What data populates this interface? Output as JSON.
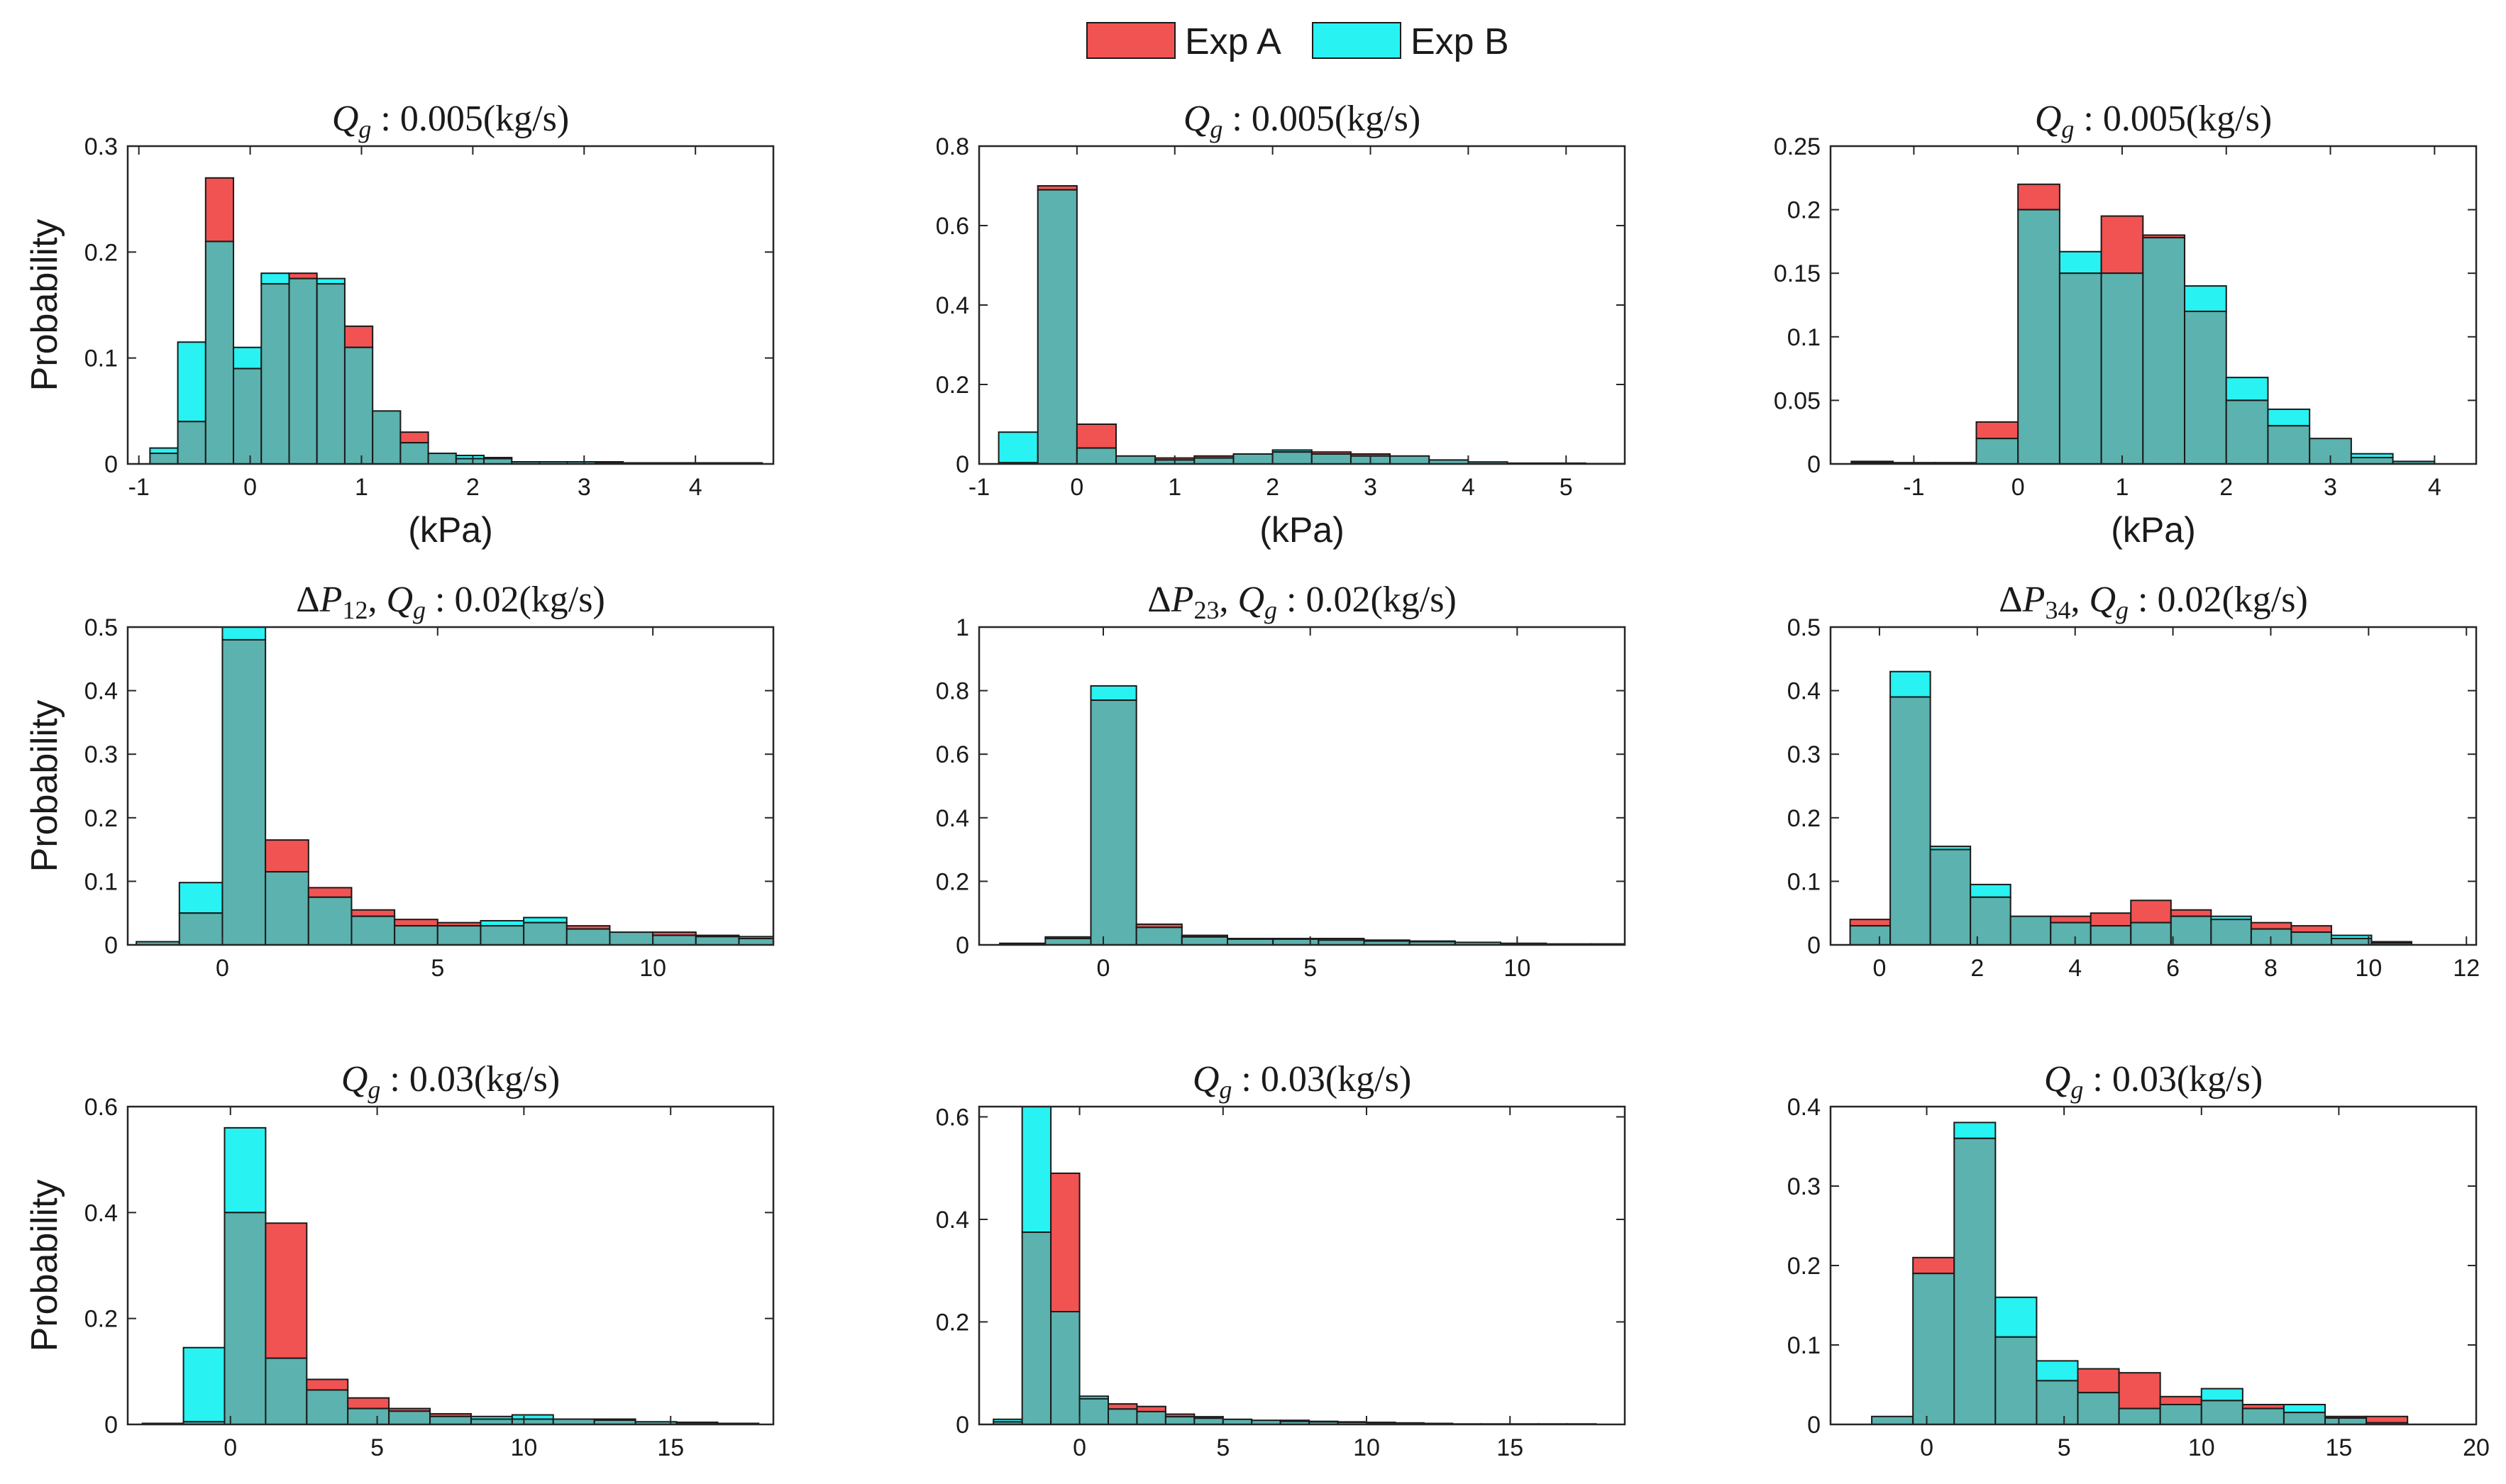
{
  "legend": {
    "entries": [
      {
        "label": "Exp A",
        "color": "#ef4444"
      },
      {
        "label": "Exp B",
        "color": "#22eeee"
      }
    ]
  },
  "colors": {
    "exp_a": "#f15353",
    "exp_b": "#28f2f2",
    "overlap": "#5cb2ae",
    "axis": "#262626"
  },
  "chart_data": [
    {
      "type": "bar",
      "title": "Q_g : 0.005(kg/s)",
      "title_prefix": "",
      "subscript": "g",
      "title_rest": ": 0.005(kg/s)",
      "xlabel": "(kPa)",
      "ylabel": "Probability",
      "xlim": [
        -1.1,
        4.7
      ],
      "ylim": [
        0,
        0.3
      ],
      "xticks": [
        -1,
        0,
        1,
        2,
        3,
        4
      ],
      "yticks": [
        0,
        0.1,
        0.2,
        0.3
      ],
      "ytick_labels": [
        "0",
        "0.1",
        "0.2",
        "0.3"
      ],
      "series": [
        {
          "name": "Exp A",
          "start": -0.9,
          "width": 0.25,
          "values": [
            0.01,
            0.04,
            0.27,
            0.09,
            0.17,
            0.18,
            0.17,
            0.13,
            0.05,
            0.03,
            0.01,
            0.005,
            0.005,
            0.002,
            0.002,
            0.002,
            0.002,
            0.001,
            0.001,
            0.001,
            0.001,
            0.001
          ]
        },
        {
          "name": "Exp B",
          "start": -0.9,
          "width": 0.25,
          "values": [
            0.015,
            0.115,
            0.21,
            0.11,
            0.18,
            0.175,
            0.175,
            0.11,
            0.05,
            0.02,
            0.01,
            0.008,
            0.006,
            0.002,
            0.002,
            0.002,
            0.001,
            0.001,
            0.001,
            0.001,
            0.001,
            0.001
          ]
        }
      ]
    },
    {
      "type": "bar",
      "title": "Q_g : 0.005(kg/s)",
      "title_prefix": "",
      "subscript": "g",
      "title_rest": ": 0.005(kg/s)",
      "xlabel": "(kPa)",
      "ylabel": "",
      "xlim": [
        -1.0,
        5.6
      ],
      "ylim": [
        0,
        0.8
      ],
      "xticks": [
        -1,
        0,
        1,
        2,
        3,
        4,
        5
      ],
      "yticks": [
        0,
        0.2,
        0.4,
        0.6,
        0.8
      ],
      "ytick_labels": [
        "0",
        "0.2",
        "0.4",
        "0.6",
        "0.8"
      ],
      "series": [
        {
          "name": "Exp A",
          "start": -0.8,
          "width": 0.4,
          "values": [
            0.003,
            0.7,
            0.1,
            0.02,
            0.015,
            0.02,
            0.025,
            0.03,
            0.03,
            0.025,
            0.02,
            0.01,
            0.005,
            0.002,
            0.002,
            0.001
          ]
        },
        {
          "name": "Exp B",
          "start": -0.8,
          "width": 0.4,
          "values": [
            0.08,
            0.69,
            0.04,
            0.02,
            0.01,
            0.015,
            0.025,
            0.035,
            0.025,
            0.02,
            0.02,
            0.01,
            0.005,
            0.002,
            0.002,
            0.001
          ]
        }
      ]
    },
    {
      "type": "bar",
      "title": "Q_g : 0.005(kg/s)",
      "title_prefix": "",
      "subscript": "g",
      "title_rest": ": 0.005(kg/s)",
      "xlabel": "(kPa)",
      "ylabel": "",
      "xlim": [
        -1.8,
        4.4
      ],
      "ylim": [
        0,
        0.25
      ],
      "xticks": [
        -1,
        0,
        1,
        2,
        3,
        4
      ],
      "yticks": [
        0,
        0.05,
        0.1,
        0.15,
        0.2,
        0.25
      ],
      "ytick_labels": [
        "0",
        "0.05",
        "0.1",
        "0.15",
        "0.2",
        "0.25"
      ],
      "series": [
        {
          "name": "Exp A",
          "start": -1.6,
          "width": 0.4,
          "values": [
            0.001,
            0.001,
            0.001,
            0.033,
            0.22,
            0.15,
            0.195,
            0.18,
            0.12,
            0.05,
            0.03,
            0.02,
            0.005,
            0.002
          ]
        },
        {
          "name": "Exp B",
          "start": -1.6,
          "width": 0.4,
          "values": [
            0.002,
            0.001,
            0.001,
            0.02,
            0.2,
            0.167,
            0.15,
            0.178,
            0.14,
            0.068,
            0.043,
            0.02,
            0.008,
            0.002
          ]
        }
      ]
    },
    {
      "type": "bar",
      "title": "ΔP12, Q_g : 0.02(kg/s)",
      "title_prefix": "ΔP",
      "title_prefix_sub": "12",
      "subscript": "g",
      "title_rest": ": 0.02(kg/s)",
      "xlabel": "",
      "ylabel": "Probability",
      "xlim": [
        -2.2,
        12.8
      ],
      "ylim": [
        0,
        0.5
      ],
      "xticks": [
        0,
        5,
        10
      ],
      "yticks": [
        0,
        0.1,
        0.2,
        0.3,
        0.4,
        0.5
      ],
      "ytick_labels": [
        "0",
        "0.1",
        "0.2",
        "0.3",
        "0.4",
        "0.5"
      ],
      "series": [
        {
          "name": "Exp A",
          "start": -2.0,
          "width": 1.0,
          "values": [
            0.005,
            0.05,
            0.48,
            0.165,
            0.09,
            0.055,
            0.04,
            0.035,
            0.03,
            0.035,
            0.03,
            0.02,
            0.02,
            0.015,
            0.01,
            0.005,
            0.002
          ]
        },
        {
          "name": "Exp B",
          "start": -2.0,
          "width": 1.0,
          "values": [
            0.005,
            0.098,
            0.5,
            0.115,
            0.075,
            0.045,
            0.03,
            0.03,
            0.038,
            0.043,
            0.025,
            0.02,
            0.015,
            0.013,
            0.013,
            0.005,
            0.002
          ]
        }
      ]
    },
    {
      "type": "bar",
      "title": "ΔP23, Q_g : 0.02(kg/s)",
      "title_prefix": "ΔP",
      "title_prefix_sub": "23",
      "subscript": "g",
      "title_rest": ": 0.02(kg/s)",
      "xlabel": "",
      "ylabel": "",
      "xlim": [
        -3.0,
        12.6
      ],
      "ylim": [
        0,
        1.0
      ],
      "xticks": [
        0,
        5,
        10
      ],
      "yticks": [
        0,
        0.2,
        0.4,
        0.6,
        0.8,
        1
      ],
      "ytick_labels": [
        "0",
        "0.2",
        "0.4",
        "0.6",
        "0.8",
        "1"
      ],
      "series": [
        {
          "name": "Exp A",
          "start": -2.5,
          "width": 1.1,
          "values": [
            0.003,
            0.025,
            0.77,
            0.065,
            0.03,
            0.02,
            0.018,
            0.015,
            0.012,
            0.01,
            0.008,
            0.005,
            0.003,
            0.003
          ]
        },
        {
          "name": "Exp B",
          "start": -2.5,
          "width": 1.1,
          "values": [
            0.005,
            0.02,
            0.815,
            0.055,
            0.025,
            0.018,
            0.02,
            0.02,
            0.015,
            0.012,
            0.008,
            0.005,
            0.003,
            0.003
          ]
        }
      ]
    },
    {
      "type": "bar",
      "title": "ΔP34, Q_g : 0.02(kg/s)",
      "title_prefix": "ΔP",
      "title_prefix_sub": "34",
      "subscript": "g",
      "title_rest": ": 0.02(kg/s)",
      "xlabel": "",
      "ylabel": "",
      "xlim": [
        -1.0,
        12.2
      ],
      "ylim": [
        0,
        0.5
      ],
      "xticks": [
        0,
        2,
        4,
        6,
        8,
        10,
        12
      ],
      "yticks": [
        0,
        0.1,
        0.2,
        0.3,
        0.4,
        0.5
      ],
      "ytick_labels": [
        "0",
        "0.1",
        "0.2",
        "0.3",
        "0.4",
        "0.5"
      ],
      "series": [
        {
          "name": "Exp A",
          "start": -0.6,
          "width": 0.82,
          "values": [
            0.04,
            0.39,
            0.15,
            0.075,
            0.045,
            0.045,
            0.05,
            0.07,
            0.055,
            0.04,
            0.035,
            0.03,
            0.01,
            0.003
          ]
        },
        {
          "name": "Exp B",
          "start": -0.6,
          "width": 0.82,
          "values": [
            0.03,
            0.43,
            0.155,
            0.095,
            0.045,
            0.035,
            0.03,
            0.035,
            0.045,
            0.045,
            0.025,
            0.02,
            0.015,
            0.005
          ]
        }
      ]
    },
    {
      "type": "bar",
      "title": "Q_g : 0.03(kg/s)",
      "title_prefix": "",
      "subscript": "g",
      "title_rest": ": 0.03(kg/s)",
      "xlabel": "",
      "ylabel": "Probability",
      "xlim": [
        -3.5,
        18.5
      ],
      "ylim": [
        0,
        0.6
      ],
      "xticks": [
        0,
        5,
        10,
        15
      ],
      "yticks": [
        0,
        0.2,
        0.4,
        0.6
      ],
      "ytick_labels": [
        "0",
        "0.2",
        "0.4",
        "0.6"
      ],
      "series": [
        {
          "name": "Exp A",
          "start": -3.0,
          "width": 1.4,
          "values": [
            0.002,
            0.005,
            0.4,
            0.38,
            0.085,
            0.05,
            0.03,
            0.02,
            0.01,
            0.01,
            0.01,
            0.01,
            0.005,
            0.004,
            0.002
          ]
        },
        {
          "name": "Exp B",
          "start": -3.0,
          "width": 1.4,
          "values": [
            0.002,
            0.145,
            0.56,
            0.125,
            0.065,
            0.03,
            0.025,
            0.015,
            0.015,
            0.018,
            0.01,
            0.008,
            0.005,
            0.003,
            0.002
          ]
        }
      ]
    },
    {
      "type": "bar",
      "title": "Q_g : 0.03(kg/s)",
      "title_prefix": "",
      "subscript": "g",
      "title_rest": ": 0.03(kg/s)",
      "xlabel": "",
      "ylabel": "",
      "xlim": [
        -3.5,
        19.0
      ],
      "ylim": [
        0,
        0.62
      ],
      "xticks": [
        0,
        5,
        10,
        15
      ],
      "yticks": [
        0,
        0.2,
        0.4,
        0.6
      ],
      "ytick_labels": [
        "0",
        "0.2",
        "0.4",
        "0.6"
      ],
      "series": [
        {
          "name": "Exp A",
          "start": -3.0,
          "width": 1.0,
          "values": [
            0.005,
            0.375,
            0.49,
            0.05,
            0.04,
            0.035,
            0.02,
            0.015,
            0.01,
            0.008,
            0.008,
            0.006,
            0.005,
            0.004,
            0.003,
            0.002,
            0.001,
            0.001,
            0.001,
            0.001,
            0.001
          ]
        },
        {
          "name": "Exp B",
          "start": -3.0,
          "width": 1.0,
          "values": [
            0.01,
            0.62,
            0.22,
            0.055,
            0.03,
            0.025,
            0.015,
            0.012,
            0.01,
            0.008,
            0.006,
            0.005,
            0.004,
            0.003,
            0.003,
            0.002,
            0.001,
            0.001,
            0.001,
            0.001,
            0.001
          ]
        }
      ]
    },
    {
      "type": "bar",
      "title": "Q_g : 0.03(kg/s)",
      "title_prefix": "",
      "subscript": "g",
      "title_rest": ": 0.03(kg/s)",
      "xlabel": "",
      "ylabel": "",
      "xlim": [
        -3.5,
        20.0
      ],
      "ylim": [
        0,
        0.4
      ],
      "xticks": [
        0,
        5,
        10,
        15,
        20
      ],
      "yticks": [
        0,
        0.1,
        0.2,
        0.3,
        0.4
      ],
      "ytick_labels": [
        "0",
        "0.1",
        "0.2",
        "0.3",
        "0.4"
      ],
      "series": [
        {
          "name": "Exp A",
          "start": -2.0,
          "width": 1.5,
          "values": [
            0.01,
            0.21,
            0.36,
            0.11,
            0.055,
            0.07,
            0.065,
            0.035,
            0.03,
            0.025,
            0.015,
            0.01,
            0.01
          ]
        },
        {
          "name": "Exp B",
          "start": -2.0,
          "width": 1.5,
          "values": [
            0.01,
            0.19,
            0.38,
            0.16,
            0.08,
            0.04,
            0.02,
            0.025,
            0.045,
            0.02,
            0.025,
            0.008,
            0.002
          ]
        }
      ]
    }
  ]
}
